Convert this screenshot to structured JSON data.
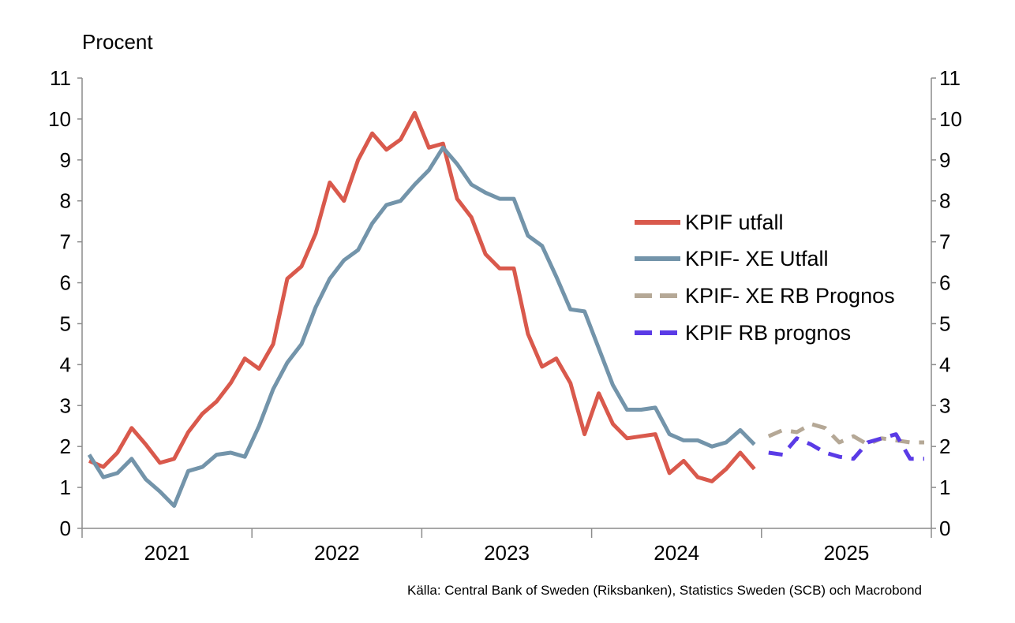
{
  "chart_data": {
    "type": "line",
    "ylabel": "Procent",
    "ylim": [
      0,
      11
    ],
    "yticks": [
      0,
      1,
      2,
      3,
      4,
      5,
      6,
      7,
      8,
      9,
      10,
      11
    ],
    "xlim": [
      "2021-01",
      "2025-12"
    ],
    "x_tick_labels": [
      "2021",
      "2022",
      "2023",
      "2024",
      "2025"
    ],
    "grid": false,
    "legend_position": "right",
    "source": "Källa: Central Bank of Sweden (Riksbanken), Statistics Sweden (SCB)  och Macrobond",
    "series": [
      {
        "name": "KPIF utfall",
        "color": "#d9594c",
        "style": "solid",
        "x": [
          "2021-01",
          "2021-02",
          "2021-03",
          "2021-04",
          "2021-05",
          "2021-06",
          "2021-07",
          "2021-08",
          "2021-09",
          "2021-10",
          "2021-11",
          "2021-12",
          "2022-01",
          "2022-02",
          "2022-03",
          "2022-04",
          "2022-05",
          "2022-06",
          "2022-07",
          "2022-08",
          "2022-09",
          "2022-10",
          "2022-11",
          "2022-12",
          "2023-01",
          "2023-02",
          "2023-03",
          "2023-04",
          "2023-05",
          "2023-06",
          "2023-07",
          "2023-08",
          "2023-09",
          "2023-10",
          "2023-11",
          "2023-12",
          "2024-01",
          "2024-02",
          "2024-03",
          "2024-04",
          "2024-05",
          "2024-06",
          "2024-07",
          "2024-08",
          "2024-09",
          "2024-10",
          "2024-11",
          "2024-12"
        ],
        "values": [
          1.65,
          1.5,
          1.85,
          2.45,
          2.05,
          1.6,
          1.7,
          2.35,
          2.8,
          3.1,
          3.55,
          4.15,
          3.9,
          4.5,
          6.1,
          6.4,
          7.2,
          8.45,
          8.0,
          9.0,
          9.65,
          9.25,
          9.5,
          10.15,
          9.3,
          9.4,
          8.05,
          7.6,
          6.7,
          6.35,
          6.35,
          4.75,
          3.95,
          4.15,
          3.55,
          2.3,
          3.3,
          2.55,
          2.2,
          2.25,
          2.3,
          1.35,
          1.65,
          1.25,
          1.15,
          1.45,
          1.85,
          1.45
        ]
      },
      {
        "name": "KPIF- XE Utfall",
        "color": "#7394aa",
        "style": "solid",
        "x": [
          "2021-01",
          "2021-02",
          "2021-03",
          "2021-04",
          "2021-05",
          "2021-06",
          "2021-07",
          "2021-08",
          "2021-09",
          "2021-10",
          "2021-11",
          "2021-12",
          "2022-01",
          "2022-02",
          "2022-03",
          "2022-04",
          "2022-05",
          "2022-06",
          "2022-07",
          "2022-08",
          "2022-09",
          "2022-10",
          "2022-11",
          "2022-12",
          "2023-01",
          "2023-02",
          "2023-03",
          "2023-04",
          "2023-05",
          "2023-06",
          "2023-07",
          "2023-08",
          "2023-09",
          "2023-10",
          "2023-11",
          "2023-12",
          "2024-01",
          "2024-02",
          "2024-03",
          "2024-04",
          "2024-05",
          "2024-06",
          "2024-07",
          "2024-08",
          "2024-09",
          "2024-10",
          "2024-11",
          "2024-12"
        ],
        "values": [
          1.8,
          1.25,
          1.35,
          1.7,
          1.2,
          0.9,
          0.55,
          1.4,
          1.5,
          1.8,
          1.85,
          1.75,
          2.5,
          3.4,
          4.05,
          4.5,
          5.4,
          6.1,
          6.55,
          6.8,
          7.45,
          7.9,
          8.0,
          8.4,
          8.75,
          9.3,
          8.9,
          8.4,
          8.2,
          8.05,
          8.05,
          7.15,
          6.9,
          6.15,
          5.35,
          5.3,
          4.4,
          3.5,
          2.9,
          2.9,
          2.95,
          2.3,
          2.15,
          2.15,
          2.0,
          2.1,
          2.4,
          2.05
        ]
      },
      {
        "name": "KPIF- XE RB Prognos",
        "color": "#b5a896",
        "style": "dashed",
        "x": [
          "2025-01",
          "2025-02",
          "2025-03",
          "2025-04",
          "2025-05",
          "2025-06",
          "2025-07",
          "2025-08",
          "2025-09",
          "2025-10",
          "2025-11",
          "2025-12"
        ],
        "values": [
          2.25,
          2.4,
          2.35,
          2.55,
          2.45,
          2.1,
          2.25,
          2.05,
          2.2,
          2.15,
          2.1,
          2.1
        ]
      },
      {
        "name": "KPIF RB prognos",
        "color": "#5a3be6",
        "style": "dashed",
        "x": [
          "2025-01",
          "2025-02",
          "2025-03",
          "2025-04",
          "2025-05",
          "2025-06",
          "2025-07",
          "2025-08",
          "2025-09",
          "2025-10",
          "2025-11",
          "2025-12"
        ],
        "values": [
          1.85,
          1.8,
          2.2,
          2.05,
          1.85,
          1.75,
          1.7,
          2.1,
          2.2,
          2.3,
          1.7,
          1.7
        ]
      }
    ]
  }
}
